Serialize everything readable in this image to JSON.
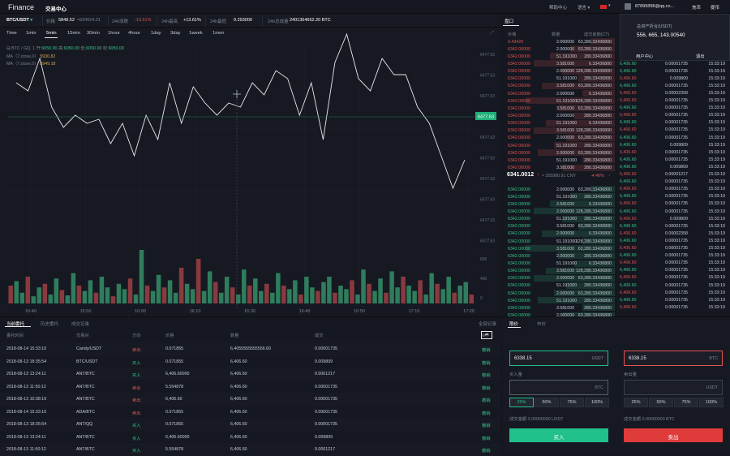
{
  "brand": "Finance",
  "nav_title": "交易中心",
  "top_right": {
    "help": "帮助中心",
    "lang": "语言",
    "email": "87895898@qq.co...",
    "recharge": "充币",
    "withdraw": "提币"
  },
  "popup": {
    "label": "总资产折合(USDT)",
    "amount": "556, 665, 143.00540",
    "user_center": "用户中心",
    "logout": "退出"
  },
  "ticker": {
    "pair": "BTC/USDT",
    "price_label": "价格",
    "price": "5848.52",
    "price_sub": "≈934524.21",
    "change_label": "24h涨跌",
    "change": "-13.61%",
    "high_label": "24h最高",
    "high": "+13.61%",
    "low_label": "24h最低",
    "low": "0.293000",
    "vol_label": "24h总成量",
    "vol": "2401364662.20 BTC"
  },
  "timeframes": [
    "Time",
    "1min",
    "5min",
    "15min",
    "30min",
    "1hour",
    "4hour",
    "1day",
    "3day",
    "1week",
    "1mon"
  ],
  "active_tf": "5min",
  "chart_legend": {
    "pair": "BTC / GQ, 1",
    "open_l": "开:",
    "open": "6050.00",
    "high_l": "高:",
    "high": "6050.00",
    "low_l": "低:",
    "low": "6050.00",
    "close_l": "收:",
    "close": "6050.00",
    "ma1_l": "MA（7,close,0）",
    "ma1": "5930.82",
    "ma2_l": "MA（7,close,0）",
    "ma2": "5949.18"
  },
  "chart_data": {
    "type": "line",
    "x_ticks": [
      "16:40",
      "15:50",
      "16:00",
      "16:10",
      "16:30",
      "16:40",
      "16:50",
      "17:10",
      "17:20"
    ],
    "y_ticks": [
      "6477.63",
      "6477.63",
      "6477.63",
      "6477.63",
      "6477.63",
      "6477.63",
      "6477.63",
      "6477.63",
      "6477.63",
      "6477.63"
    ],
    "current_label": "6477.63",
    "vol_ticks": [
      "800",
      "400",
      "0"
    ],
    "price_series": [
      200,
      190,
      230,
      170,
      145,
      160,
      150,
      155,
      125,
      150,
      110,
      160,
      130,
      200,
      150,
      195,
      175,
      160,
      175,
      170,
      200,
      185,
      215,
      205,
      160,
      200,
      130,
      225,
      260,
      205,
      190,
      230,
      210,
      210,
      170,
      150,
      110,
      70,
      105
    ]
  },
  "orders": {
    "tabs": [
      "当前委托",
      "历史委托",
      "成交记录"
    ],
    "all_orders": "全部记录",
    "headers": {
      "time": "委托时间",
      "pair": "交易对",
      "dir": "方向",
      "price": "价格",
      "amount": "数量",
      "deal": "成交",
      "op": "操作"
    },
    "rows": [
      {
        "time": "2018-08-14  15:33:10",
        "pair": "Candy/USDT",
        "dir": "卖出",
        "price": "0.071855",
        "amount": "6,4055555555556.60",
        "deal": "0.00001735",
        "op": "撤销"
      },
      {
        "time": "2018-08-13  18:35:54",
        "pair": "BTC/USDT",
        "dir": "买入",
        "price": "0.071855",
        "amount": "6,406.60",
        "deal": "0.009809",
        "op": "撤销"
      },
      {
        "time": "2018-08-13  13:24:11",
        "pair": "ANT/BTC",
        "dir": "买入",
        "price": "6,406.60000",
        "amount": "6,406.60",
        "deal": "0.0001217",
        "op": "撤销"
      },
      {
        "time": "2018-08-13  11:50:12",
        "pair": "ANT/BTC",
        "dir": "卖出",
        "price": "5.554878",
        "amount": "6,406.60",
        "deal": "0.00001735",
        "op": "撤销"
      },
      {
        "time": "2018-08-13  10:38:19",
        "pair": "ANT/BTC",
        "dir": "卖出",
        "price": "6,406.60",
        "amount": "6,406.60",
        "deal": "0.00001735",
        "op": "撤销"
      },
      {
        "time": "2018-08-14  15:33:10",
        "pair": "ADA/BTC",
        "dir": "卖出",
        "price": "0.071855",
        "amount": "6,406.60",
        "deal": "0.00001735",
        "op": "撤销"
      },
      {
        "time": "2018-08-13  18:35:54",
        "pair": "ANT/QQ",
        "dir": "买入",
        "price": "0.071855",
        "amount": "6,406.60",
        "deal": "0.00001735",
        "op": "撤销"
      },
      {
        "time": "2018-08-13  13:24:11",
        "pair": "ANT/BTC",
        "dir": "买入",
        "price": "6,406.60000",
        "amount": "6,406.60",
        "deal": "0.009809",
        "op": "撤销"
      },
      {
        "time": "2018-08-13  11:50:12",
        "pair": "ANT/BTC",
        "dir": "买入",
        "price": "5.554878",
        "amount": "6,406.60",
        "deal": "0.0001217",
        "op": "撤销"
      }
    ]
  },
  "orderbook": {
    "title": "盘口",
    "headers": {
      "price": "价格",
      "amount": "数量",
      "total": "成交金额(CT)"
    },
    "asks": [
      {
        "p": "0.43420",
        "a": "2.000000",
        "t": "63,280.33436800"
      },
      {
        "p": "6342.00000",
        "a": "2.000000",
        "t": "63,280.33436800"
      },
      {
        "p": "6342.00000",
        "a": "51.191000",
        "t": "280.33436800"
      },
      {
        "p": "6342.00000",
        "a": "3.581000",
        "t": "6.33436800"
      },
      {
        "p": "6342.00000",
        "a": "2.000000",
        "t": "128,280.33436800"
      },
      {
        "p": "6342.00000",
        "a": "51.191000",
        "t": "280.33436800"
      },
      {
        "p": "6342.00000",
        "a": "3.581000",
        "t": "63,280.33436800"
      },
      {
        "p": "6342.00000",
        "a": "2.000000",
        "t": "6.33436800"
      },
      {
        "p": "6342.00000",
        "a": "51.191000",
        "t": "128,280.33436800"
      },
      {
        "p": "6342.00000",
        "a": "3.581000",
        "t": "63,280.33436800"
      },
      {
        "p": "6342.00000",
        "a": "2.000000",
        "t": "280.33436800"
      },
      {
        "p": "6342.00000",
        "a": "51.191000",
        "t": "6.33436800"
      },
      {
        "p": "6342.00000",
        "a": "3.581000",
        "t": "128,280.33436800"
      },
      {
        "p": "6342.00000",
        "a": "2.000000",
        "t": "63,280.33436800"
      },
      {
        "p": "6342.00000",
        "a": "51.191000",
        "t": "280.33436800"
      },
      {
        "p": "6342.00000",
        "a": "2.000000",
        "t": "63,280.33436800"
      },
      {
        "p": "6342.00000",
        "a": "51.191000",
        "t": "280.33436800"
      },
      {
        "p": "6342.00000",
        "a": "3.581000",
        "t": "280.33436800"
      }
    ],
    "mid": {
      "price": "6341.0012",
      "arrow": "↑",
      "cny": "≈ 255980.91 CNY",
      "pct": "-4.46%"
    },
    "bids": [
      {
        "p": "6342.00000",
        "a": "2.000000",
        "t": "63,280.33436800"
      },
      {
        "p": "6342.00000",
        "a": "51.191000",
        "t": "280.33436800"
      },
      {
        "p": "6342.00000",
        "a": "3.581000",
        "t": "6.33436800"
      },
      {
        "p": "6342.00000",
        "a": "2.000000",
        "t": "128,280.33436800"
      },
      {
        "p": "6342.00000",
        "a": "51.191000",
        "t": "280.33436800"
      },
      {
        "p": "6342.00000",
        "a": "3.581000",
        "t": "63,280.33436800"
      },
      {
        "p": "6342.00000",
        "a": "2.000000",
        "t": "6.33436800"
      },
      {
        "p": "6342.00000",
        "a": "51.191000",
        "t": "128,280.33436800"
      },
      {
        "p": "6342.00000",
        "a": "3.581000",
        "t": "63,280.33436800"
      },
      {
        "p": "6342.00000",
        "a": "2.000000",
        "t": "280.33436800"
      },
      {
        "p": "6342.00000",
        "a": "51.191000",
        "t": "6.33436800"
      },
      {
        "p": "6342.00000",
        "a": "3.581000",
        "t": "128,280.33436800"
      },
      {
        "p": "6342.00000",
        "a": "2.000000",
        "t": "63,280.33436800"
      },
      {
        "p": "6342.00000",
        "a": "51.191000",
        "t": "280.33436800"
      },
      {
        "p": "6342.00000",
        "a": "2.000000",
        "t": "63,280.33436800"
      },
      {
        "p": "6342.00000",
        "a": "51.191000",
        "t": "280.33436800"
      },
      {
        "p": "6342.00000",
        "a": "3.581000",
        "t": "280.33436800"
      },
      {
        "p": "6342.00000",
        "a": "2.000000",
        "t": "63,280.33436800"
      }
    ]
  },
  "trades": [
    {
      "p": "6,406.60",
      "a": "0.00001735",
      "t": "15:33:19",
      "c": "g"
    },
    {
      "p": "6,406.60",
      "a": "0.00001735",
      "t": "15:33:19",
      "c": "g"
    },
    {
      "p": "6,406.60",
      "a": "0.009809",
      "t": "15:33:19",
      "c": "r"
    },
    {
      "p": "6,406.60",
      "a": "0.00001735",
      "t": "15:33:19",
      "c": "g"
    },
    {
      "p": "6,406.60",
      "a": "0.00002358",
      "t": "15:33:19",
      "c": "r"
    },
    {
      "p": "6,406.60",
      "a": "0.00001735",
      "t": "15:33:19",
      "c": "r"
    },
    {
      "p": "6,406.60",
      "a": "0.00001735",
      "t": "15:33:19",
      "c": "g"
    },
    {
      "p": "6,406.60",
      "a": "0.00001735",
      "t": "15:33:19",
      "c": "r"
    },
    {
      "p": "6,406.60",
      "a": "0.00001735",
      "t": "15:33:19",
      "c": "g"
    },
    {
      "p": "6,406.60",
      "a": "0.00001735",
      "t": "15:33:19",
      "c": "r"
    },
    {
      "p": "6,406.60",
      "a": "0.00001735",
      "t": "15:33:19",
      "c": "g"
    },
    {
      "p": "6,406.60",
      "a": "0.009809",
      "t": "15:33:19",
      "c": "g"
    },
    {
      "p": "6,406.60",
      "a": "0.00001735",
      "t": "15:33:19",
      "c": "r"
    },
    {
      "p": "6,406.60",
      "a": "0.00001735",
      "t": "15:33:19",
      "c": "g"
    },
    {
      "p": "6,406.60",
      "a": "0.009809",
      "t": "15:33:19",
      "c": "g"
    },
    {
      "p": "6,406.60",
      "a": "0.00001217",
      "t": "15:33:19",
      "c": "r"
    },
    {
      "p": "6,406.60",
      "a": "0.00001735",
      "t": "15:33:19",
      "c": "g"
    },
    {
      "p": "6,406.60",
      "a": "0.00001735",
      "t": "15:33:19",
      "c": "r"
    },
    {
      "p": "6,406.60",
      "a": "0.00001735",
      "t": "15:33:19",
      "c": "g"
    },
    {
      "p": "6,406.60",
      "a": "0.00001735",
      "t": "15:33:19",
      "c": "r"
    },
    {
      "p": "6,406.60",
      "a": "0.00001735",
      "t": "15:33:19",
      "c": "g"
    },
    {
      "p": "6,406.60",
      "a": "0.009809",
      "t": "15:33:19",
      "c": "r"
    },
    {
      "p": "6,406.60",
      "a": "0.00001735",
      "t": "15:33:19",
      "c": "g"
    },
    {
      "p": "6,406.60",
      "a": "0.00002358",
      "t": "15:33:19",
      "c": "r"
    },
    {
      "p": "6,406.60",
      "a": "0.00001735",
      "t": "15:33:19",
      "c": "g"
    },
    {
      "p": "6,406.60",
      "a": "0.00001735",
      "t": "15:33:19",
      "c": "r"
    },
    {
      "p": "6,406.60",
      "a": "0.00001735",
      "t": "15:33:19",
      "c": "g"
    },
    {
      "p": "6,406.60",
      "a": "0.00001735",
      "t": "15:33:19",
      "c": "r"
    },
    {
      "p": "6,406.60",
      "a": "0.00001735",
      "t": "15:33:19",
      "c": "g"
    },
    {
      "p": "6,406.60",
      "a": "0.00001735",
      "t": "15:33:19",
      "c": "r"
    },
    {
      "p": "6,406.60",
      "a": "0.00001735",
      "t": "15:33:19",
      "c": "g"
    },
    {
      "p": "6,406.60",
      "a": "0.00001735",
      "t": "15:33:19",
      "c": "r"
    },
    {
      "p": "6,406.60",
      "a": "0.00001735",
      "t": "15:33:19",
      "c": "g"
    },
    {
      "p": "6,406.60",
      "a": "0.00001735",
      "t": "15:33:19",
      "c": "r"
    }
  ],
  "trade_form": {
    "tabs": [
      "限价",
      "市价"
    ],
    "buy_price": "6338.15",
    "buy_unit": "USDT",
    "sell_price": "6338.15",
    "sell_unit": "BTC",
    "buy_amount_label": "买入量",
    "buy_amount_unit": "BTC",
    "sell_amount_label": "卖出量",
    "sell_amount_unit": "USDT",
    "pcts": [
      "25%",
      "50%",
      "75%",
      "100%"
    ],
    "buy_total": "成交金额 0.00000000 USDT",
    "sell_total": "成交金额 0.00000000 BTC",
    "buy_btn": "买入",
    "sell_btn": "卖出"
  },
  "colors": {
    "up": "#37c58c",
    "down": "#e05353",
    "accent": "#22c08a"
  }
}
